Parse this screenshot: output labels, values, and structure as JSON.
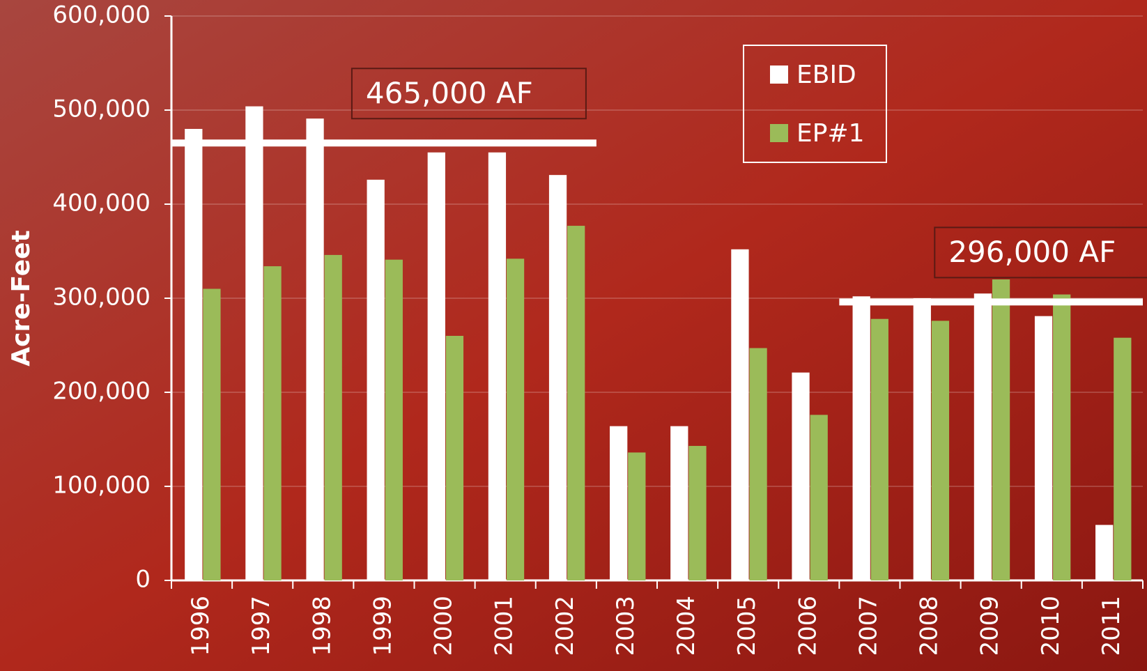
{
  "chart_data": {
    "type": "bar",
    "y_label": "Acre-Feet",
    "categories": [
      "1996",
      "1997",
      "1998",
      "1999",
      "2000",
      "2001",
      "2002",
      "2003",
      "2004",
      "2005",
      "2006",
      "2007",
      "2008",
      "2009",
      "2010",
      "2011"
    ],
    "series": [
      {
        "name": "EBID",
        "color": "#ffffff",
        "values": [
          480000,
          504000,
          491000,
          426000,
          455000,
          455000,
          431000,
          164000,
          164000,
          352000,
          221000,
          302000,
          300000,
          305000,
          281000,
          59000
        ]
      },
      {
        "name": "EP#1",
        "color": "#9bbb59",
        "values": [
          310000,
          334000,
          346000,
          341000,
          260000,
          342000,
          377000,
          136000,
          143000,
          247000,
          176000,
          278000,
          276000,
          320000,
          304000,
          258000
        ]
      }
    ],
    "ylim": [
      0,
      600000
    ],
    "yticks": [
      0,
      {
        "value": 100000,
        "label": "100,000"
      },
      {
        "value": 200000,
        "label": "200,000"
      },
      {
        "value": 300000,
        "label": "300,000"
      },
      {
        "value": 400000,
        "label": "400,000"
      },
      {
        "value": 500000,
        "label": "500,000"
      },
      {
        "value": 600000,
        "label": "600,000"
      }
    ],
    "grid": true,
    "legend": "top-right",
    "annotations": [
      {
        "label": "465,000 AF",
        "value": 465000,
        "x_range": [
          "1996",
          "2002"
        ]
      },
      {
        "label": "296,000 AF",
        "value": 296000,
        "x_range": [
          "2007",
          "2011"
        ]
      }
    ]
  }
}
